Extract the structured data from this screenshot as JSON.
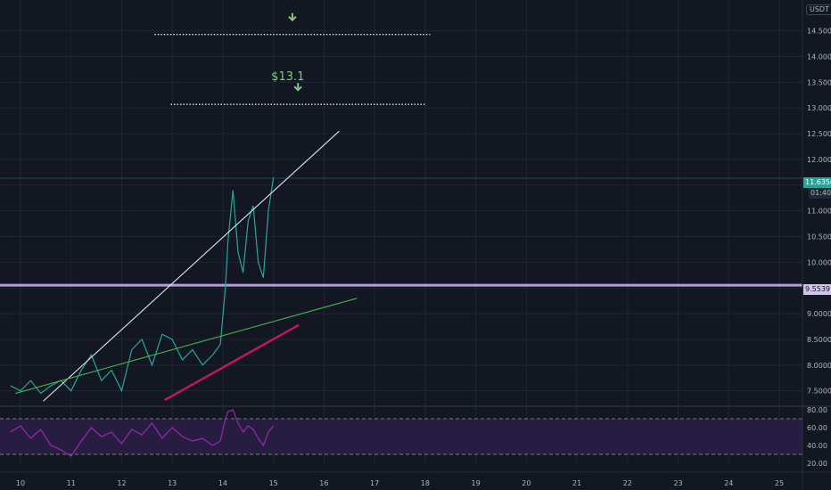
{
  "currency_badge": "USDT",
  "chart_data": {
    "type": "line",
    "symbol_currency": "USDT",
    "x_tick_labels": [
      "10",
      "11",
      "12",
      "13",
      "14",
      "15",
      "16",
      "17",
      "18",
      "19",
      "20",
      "21",
      "22",
      "23",
      "24",
      "25"
    ],
    "price_axis": {
      "ticks": [
        "14.5000",
        "14.0000",
        "13.5000",
        "13.0000",
        "12.5000",
        "12.0000",
        "11.5000",
        "11.0000",
        "10.5000",
        "10.0000",
        "9.5000",
        "9.0000",
        "8.5000",
        "8.0000",
        "7.5000"
      ],
      "range": [
        7.2,
        15.1
      ]
    },
    "last_price": {
      "value": "11.6350",
      "countdown": "01:40",
      "color": "#26a69a"
    },
    "horizontal_level": {
      "value": "9.5539",
      "color": "#b39ddb"
    },
    "targets": [
      {
        "label": "",
        "value": 14.43,
        "x_start": 12.65,
        "x_end": 18.1
      },
      {
        "label": "$13.1",
        "value": 13.07,
        "x_start": 12.97,
        "x_end": 18.0
      }
    ],
    "trendlines": [
      {
        "from": [
          10.45,
          7.3
        ],
        "to": [
          16.3,
          12.55
        ],
        "color": "#e0e3eb"
      },
      {
        "from": [
          9.9,
          7.45
        ],
        "to": [
          16.65,
          9.3
        ],
        "color": "#4caf50"
      },
      {
        "from": [
          12.85,
          7.32
        ],
        "to": [
          15.5,
          8.78
        ],
        "color": "#c2185b"
      }
    ],
    "price_series": {
      "name": "",
      "x": [
        9.8,
        10.0,
        10.2,
        10.4,
        10.6,
        10.8,
        11.0,
        11.2,
        11.4,
        11.6,
        11.8,
        12.0,
        12.2,
        12.4,
        12.6,
        12.8,
        13.0,
        13.2,
        13.4,
        13.6,
        13.8,
        13.95,
        14.05,
        14.1,
        14.2,
        14.3,
        14.4,
        14.5,
        14.6,
        14.7,
        14.8,
        14.9,
        15.0
      ],
      "y": [
        7.6,
        7.5,
        7.7,
        7.45,
        7.6,
        7.7,
        7.5,
        7.9,
        8.2,
        7.7,
        7.9,
        7.5,
        8.3,
        8.5,
        8.0,
        8.6,
        8.5,
        8.1,
        8.3,
        8.0,
        8.2,
        8.4,
        9.5,
        10.4,
        11.4,
        10.2,
        9.8,
        10.8,
        11.1,
        10.0,
        9.7,
        11.0,
        11.65
      ]
    },
    "rsi": {
      "ticks": [
        "80.00",
        "60.00",
        "40.00",
        "20.00"
      ],
      "range": [
        20,
        82
      ],
      "upper_band": 70,
      "lower_band": 30,
      "x": [
        9.8,
        10.0,
        10.2,
        10.4,
        10.6,
        10.8,
        11.0,
        11.2,
        11.4,
        11.6,
        11.8,
        12.0,
        12.2,
        12.4,
        12.6,
        12.8,
        13.0,
        13.2,
        13.4,
        13.6,
        13.8,
        13.95,
        14.05,
        14.1,
        14.2,
        14.3,
        14.4,
        14.5,
        14.6,
        14.7,
        14.8,
        14.9,
        15.0
      ],
      "y": [
        55,
        62,
        48,
        58,
        40,
        35,
        28,
        45,
        60,
        50,
        55,
        42,
        58,
        52,
        65,
        48,
        60,
        50,
        45,
        48,
        40,
        45,
        70,
        78,
        80,
        65,
        55,
        62,
        58,
        48,
        40,
        55,
        62
      ]
    }
  }
}
